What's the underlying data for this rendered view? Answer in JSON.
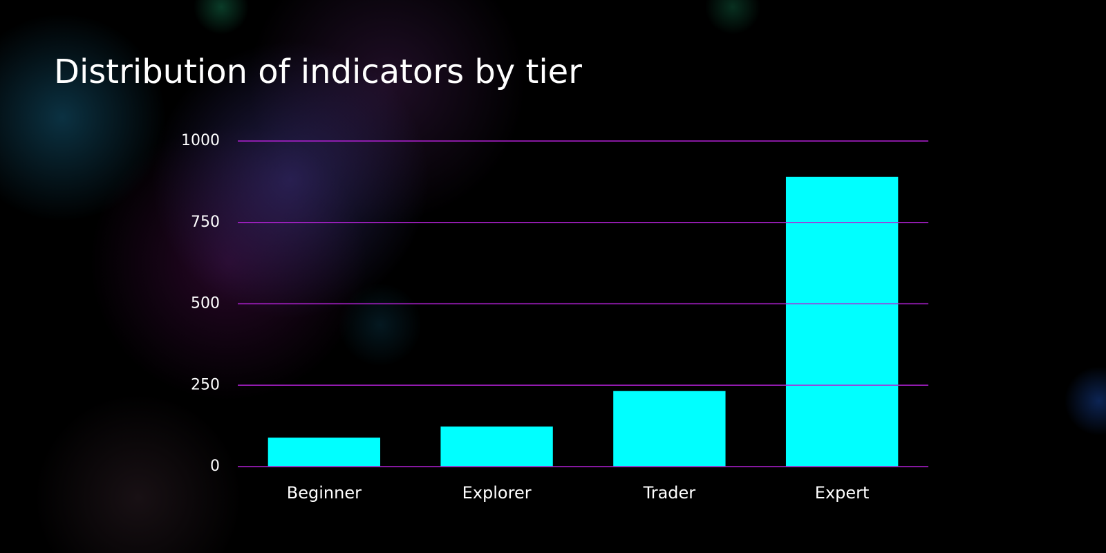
{
  "chart_data": {
    "type": "bar",
    "title": "Distribution of indicators by tier",
    "categories": [
      "Beginner",
      "Explorer",
      "Trader",
      "Expert"
    ],
    "values": [
      89,
      123,
      232,
      890
    ],
    "color": "#00ffff",
    "ylim": [
      0,
      1000
    ],
    "yticks": [
      0,
      250,
      500,
      750,
      1000
    ],
    "grid": true,
    "grid_color": "#b321d6"
  }
}
